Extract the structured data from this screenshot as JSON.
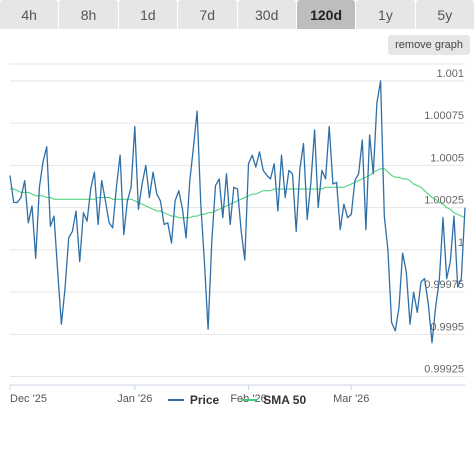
{
  "tabs": [
    {
      "label": "4h",
      "active": false
    },
    {
      "label": "8h",
      "active": false
    },
    {
      "label": "1d",
      "active": false
    },
    {
      "label": "7d",
      "active": false
    },
    {
      "label": "30d",
      "active": false
    },
    {
      "label": "120d",
      "active": true
    },
    {
      "label": "1y",
      "active": false
    },
    {
      "label": "5y",
      "active": false
    }
  ],
  "remove_graph_label": "remove graph",
  "chart_data": {
    "type": "line",
    "x_ticks": [
      "Dec '25",
      "Jan '26",
      "Feb '26",
      "Mar '26"
    ],
    "y_ticks": [
      "1.001",
      "1.00075",
      "1.0005",
      "1.00025",
      "1",
      "0.99975",
      "0.9995",
      "0.99925"
    ],
    "ylim": [
      0.9992,
      1.0011
    ],
    "grid": true,
    "series": [
      {
        "name": "Price",
        "color": "#2f6fa7",
        "values": [
          1.00044,
          1.00028,
          1.00028,
          1.00031,
          1.00041,
          1.00016,
          1.00026,
          0.99995,
          1.00037,
          1.00052,
          1.00061,
          1.00014,
          1.0002,
          0.99987,
          0.99956,
          0.99977,
          1.00007,
          1.00011,
          1.00023,
          0.99993,
          1.00022,
          1.00017,
          1.00036,
          1.00046,
          1.00015,
          1.00041,
          1.00029,
          1.00016,
          1.00013,
          1.00037,
          1.00056,
          1.00009,
          1.00029,
          1.00037,
          1.00073,
          1.00024,
          1.00039,
          1.0005,
          1.00031,
          1.00046,
          1.00033,
          1.00029,
          1.00015,
          1.00016,
          1.00004,
          1.00029,
          1.00035,
          1.00024,
          1.00007,
          1.00041,
          1.00061,
          1.00082,
          1.00027,
          0.99992,
          0.99953,
          1.00005,
          1.00038,
          1.00042,
          1.00019,
          1.00045,
          1.00015,
          1.00037,
          1.00036,
          1.00011,
          0.99994,
          1.00051,
          1.00056,
          1.00049,
          1.00058,
          1.00047,
          1.00044,
          1.00042,
          1.00051,
          1.00023,
          1.00056,
          1.00031,
          1.00047,
          1.00045,
          1.00011,
          1.00048,
          1.00063,
          1.00018,
          1.0004,
          1.00071,
          1.00025,
          1.00047,
          1.00042,
          1.00073,
          1.00039,
          1.0004,
          1.00012,
          1.00027,
          1.00019,
          1.00021,
          1.00041,
          1.00045,
          1.00065,
          1.00012,
          1.00068,
          1.00045,
          1.00087,
          1.001,
          1.0002,
          1.0,
          0.99957,
          0.99952,
          0.99966,
          0.99998,
          0.99987,
          0.99956,
          0.99975,
          0.99963,
          0.99981,
          0.99983,
          0.99968,
          0.99945,
          0.99966,
          0.99982,
          1.00019,
          0.99983,
          0.99993,
          1.0002,
          0.99978,
          0.99983,
          1.00025
        ]
      },
      {
        "name": "SMA 50",
        "color": "#3fcf73",
        "values": [
          1.00036,
          1.00036,
          1.00035,
          1.00034,
          1.00034,
          1.00034,
          1.00033,
          1.00032,
          1.00032,
          1.00032,
          1.00031,
          1.00031,
          1.0003,
          1.0003,
          1.0003,
          1.0003,
          1.0003,
          1.0003,
          1.0003,
          1.0003,
          1.0003,
          1.0003,
          1.0003,
          1.0003,
          1.00031,
          1.00031,
          1.00031,
          1.00031,
          1.0003,
          1.0003,
          1.0003,
          1.0003,
          1.0003,
          1.0003,
          1.00029,
          1.00028,
          1.00027,
          1.00026,
          1.00025,
          1.00024,
          1.00023,
          1.00023,
          1.00022,
          1.00021,
          1.0002,
          1.0002,
          1.00019,
          1.00019,
          1.00019,
          1.00019,
          1.0002,
          1.0002,
          1.00021,
          1.00021,
          1.00022,
          1.00022,
          1.00023,
          1.00024,
          1.00025,
          1.00026,
          1.00027,
          1.00028,
          1.00029,
          1.0003,
          1.00031,
          1.00032,
          1.00033,
          1.00033,
          1.00034,
          1.00035,
          1.00035,
          1.00035,
          1.00036,
          1.00036,
          1.00036,
          1.00036,
          1.00036,
          1.00036,
          1.00036,
          1.00036,
          1.00036,
          1.00036,
          1.00036,
          1.00036,
          1.00036,
          1.00036,
          1.00037,
          1.00037,
          1.00037,
          1.00037,
          1.00037,
          1.00037,
          1.00038,
          1.00039,
          1.0004,
          1.00041,
          1.00042,
          1.00043,
          1.00044,
          1.00046,
          1.00047,
          1.00048,
          1.00048,
          1.00046,
          1.00044,
          1.00043,
          1.00043,
          1.00042,
          1.00042,
          1.00041,
          1.00039,
          1.00038,
          1.00037,
          1.00035,
          1.00033,
          1.00031,
          1.0003,
          1.00028,
          1.00027,
          1.00025,
          1.00024,
          1.00022,
          1.00021,
          1.0002,
          1.00019
        ]
      }
    ]
  }
}
